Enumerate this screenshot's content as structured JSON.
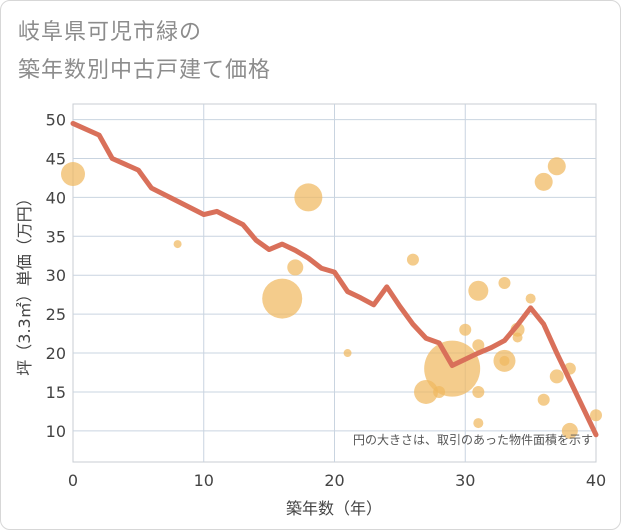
{
  "chart_data": {
    "type": "scatter",
    "title_lines": [
      "岐阜県可児市緑の",
      "築年数別中古戸建て価格"
    ],
    "xlabel": "築年数（年）",
    "ylabel": "坪（3.3㎡）単価（万円）",
    "xlim": [
      0,
      40
    ],
    "ylim": [
      6,
      52
    ],
    "xticks": [
      0,
      10,
      20,
      30,
      40
    ],
    "yticks": [
      10,
      15,
      20,
      25,
      30,
      35,
      40,
      45,
      50
    ],
    "grid": true,
    "note": "円の大きさは、取引のあった物件面積を示す",
    "colors": {
      "bubble": "#f0b860",
      "line": "#d9705a"
    },
    "bubbles": [
      {
        "x": 0,
        "y": 43,
        "r": 12
      },
      {
        "x": 8,
        "y": 34,
        "r": 4
      },
      {
        "x": 16,
        "y": 27,
        "r": 20
      },
      {
        "x": 17,
        "y": 31,
        "r": 8
      },
      {
        "x": 18,
        "y": 40,
        "r": 14
      },
      {
        "x": 21,
        "y": 20,
        "r": 4
      },
      {
        "x": 26,
        "y": 32,
        "r": 6
      },
      {
        "x": 27,
        "y": 15,
        "r": 12
      },
      {
        "x": 28,
        "y": 15,
        "r": 6
      },
      {
        "x": 29,
        "y": 18,
        "r": 28
      },
      {
        "x": 30,
        "y": 23,
        "r": 6
      },
      {
        "x": 31,
        "y": 28,
        "r": 10
      },
      {
        "x": 31,
        "y": 21,
        "r": 6
      },
      {
        "x": 31,
        "y": 15,
        "r": 6
      },
      {
        "x": 31,
        "y": 11,
        "r": 5
      },
      {
        "x": 33,
        "y": 29,
        "r": 6
      },
      {
        "x": 33,
        "y": 19,
        "r": 11
      },
      {
        "x": 33,
        "y": 19,
        "r": 5
      },
      {
        "x": 34,
        "y": 23,
        "r": 7
      },
      {
        "x": 34,
        "y": 22,
        "r": 5
      },
      {
        "x": 35,
        "y": 27,
        "r": 5
      },
      {
        "x": 36,
        "y": 42,
        "r": 9
      },
      {
        "x": 36,
        "y": 14,
        "r": 6
      },
      {
        "x": 37,
        "y": 44,
        "r": 9
      },
      {
        "x": 37,
        "y": 17,
        "r": 7
      },
      {
        "x": 38,
        "y": 18,
        "r": 6
      },
      {
        "x": 38,
        "y": 10,
        "r": 8
      },
      {
        "x": 40,
        "y": 12,
        "r": 6
      }
    ],
    "line": {
      "x": [
        0,
        2,
        3,
        5,
        6,
        8,
        10,
        11,
        13,
        14,
        15,
        16,
        17,
        18,
        19,
        20,
        21,
        22,
        23,
        24,
        25,
        26,
        27,
        28,
        29,
        30,
        31,
        32,
        33,
        34,
        35,
        36,
        37,
        38,
        39,
        40
      ],
      "y": [
        49.5,
        48,
        45,
        43.5,
        41.2,
        39.5,
        37.8,
        38.2,
        36.5,
        34.5,
        33.3,
        34,
        33.2,
        32.2,
        30.9,
        30.4,
        27.9,
        27.1,
        26.2,
        28.5,
        26,
        23.7,
        21.9,
        21.3,
        18.4,
        19.2,
        20,
        20.7,
        21.6,
        23.6,
        25.8,
        23.7,
        20,
        16.5,
        13,
        9.5
      ]
    }
  }
}
